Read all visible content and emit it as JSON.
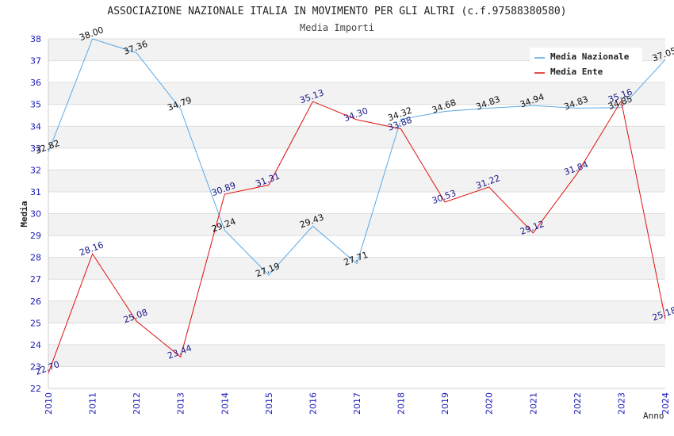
{
  "chart_data": {
    "type": "line",
    "title": "ASSOCIAZIONE NAZIONALE ITALIA IN MOVIMENTO PER GLI ALTRI (c.f.97588380580)",
    "subtitle": "Media Importi",
    "xlabel": "Anno",
    "ylabel": "Media",
    "x": [
      "2010",
      "2011",
      "2012",
      "2013",
      "2014",
      "2015",
      "2016",
      "2017",
      "2018",
      "2019",
      "2020",
      "2021",
      "2022",
      "2023",
      "2024"
    ],
    "ylim": [
      22,
      38
    ],
    "yticks": [
      22,
      23,
      24,
      25,
      26,
      27,
      28,
      29,
      30,
      31,
      32,
      33,
      34,
      35,
      36,
      37,
      38
    ],
    "grid": "horizontal alternating bands",
    "legend_position": "top-right",
    "series": [
      {
        "name": "Media Nazionale",
        "color": "#5aa9e6",
        "label_color": "#111111",
        "values": [
          32.82,
          38.0,
          37.36,
          34.79,
          29.24,
          27.19,
          29.43,
          27.71,
          34.32,
          34.68,
          34.83,
          34.94,
          34.83,
          34.85,
          37.05
        ],
        "labels": [
          "32.82",
          "38.00",
          "37.36",
          "34.79",
          "29.24",
          "27.19",
          "29.43",
          "27.71",
          "34.32",
          "34.68",
          "34.83",
          "34.94",
          "34.83",
          "34.85",
          "37.05"
        ]
      },
      {
        "name": "Media Ente",
        "color": "#e01010",
        "label_color": "#1a1a8c",
        "values": [
          22.7,
          28.16,
          25.08,
          23.44,
          30.89,
          31.31,
          35.13,
          34.3,
          33.88,
          30.53,
          31.22,
          29.12,
          31.84,
          35.16,
          25.18
        ],
        "labels": [
          "22.70",
          "28.16",
          "25.08",
          "23.44",
          "30.89",
          "31.31",
          "35.13",
          "34.30",
          "33.88",
          "30.53",
          "31.22",
          "29.12",
          "31.84",
          "35.16",
          "25.18"
        ]
      }
    ]
  }
}
